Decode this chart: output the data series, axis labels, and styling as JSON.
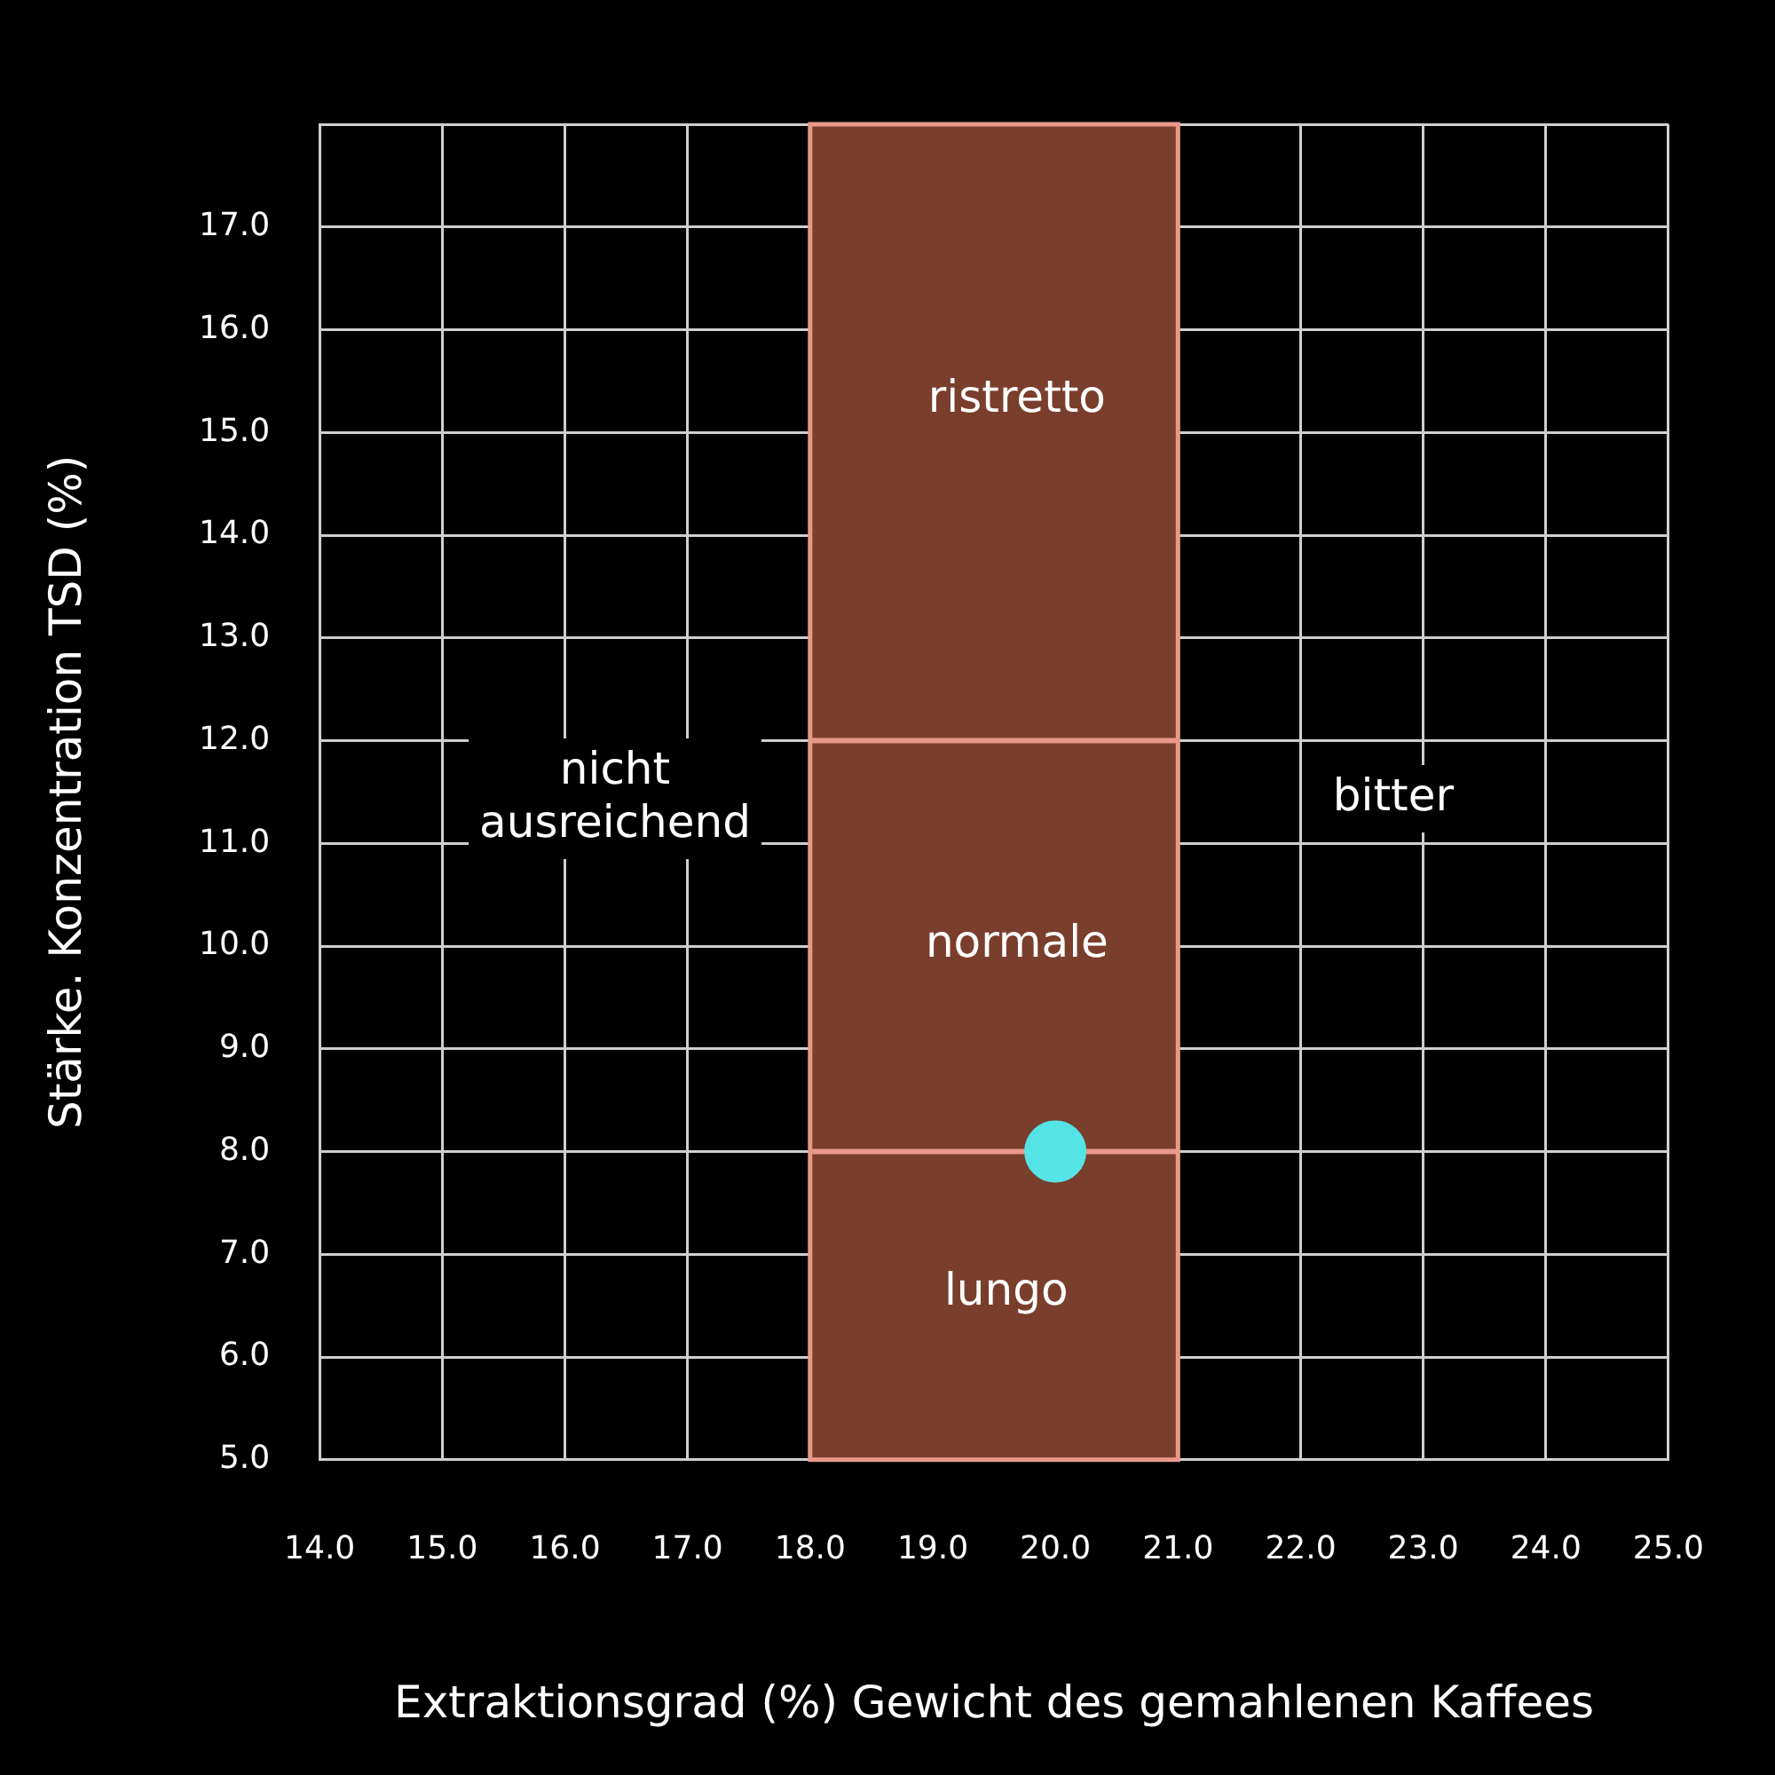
{
  "chart_data": {
    "type": "scatter",
    "xlabel": "Extraktionsgrad (%) Gewicht des gemahlenen Kaffees",
    "ylabel": "Stärke. Konzentration TSD (%)",
    "x": [
      20.0
    ],
    "values": [
      8.0
    ],
    "color": "#55e4e6",
    "marker": "circle",
    "xlim": [
      14,
      25
    ],
    "xticks": [
      {
        "value": 14,
        "label": "14.0"
      },
      {
        "value": 15,
        "label": "15.0"
      },
      {
        "value": 16,
        "label": "16.0"
      },
      {
        "value": 17,
        "label": "17.0"
      },
      {
        "value": 18,
        "label": "18.0"
      },
      {
        "value": 19,
        "label": "19.0"
      },
      {
        "value": 20,
        "label": "20.0"
      },
      {
        "value": 21,
        "label": "21.0"
      },
      {
        "value": 22,
        "label": "22.0"
      },
      {
        "value": 23,
        "label": "23.0"
      },
      {
        "value": 24,
        "label": "24.0"
      },
      {
        "value": 25,
        "label": "25.0"
      }
    ],
    "ylim": [
      5,
      18
    ],
    "yticks": [
      {
        "value": 5,
        "label": "5.0"
      },
      {
        "value": 6,
        "label": "6.0"
      },
      {
        "value": 7,
        "label": "7.0"
      },
      {
        "value": 8,
        "label": "8.0"
      },
      {
        "value": 9,
        "label": "9.0"
      },
      {
        "value": 10,
        "label": "10.0"
      },
      {
        "value": 11,
        "label": "11.0"
      },
      {
        "value": 12,
        "label": "12.0"
      },
      {
        "value": 13,
        "label": "13.0"
      },
      {
        "value": 14,
        "label": "14.0"
      },
      {
        "value": 15,
        "label": "15.0"
      },
      {
        "value": 16,
        "label": "16.0"
      },
      {
        "value": 17,
        "label": "17.0"
      },
      {
        "value": 18,
        "label": null
      }
    ],
    "grid": true,
    "bands": [
      {
        "axis": "x",
        "from": 18,
        "to": 21,
        "color": "#7a3e2c"
      }
    ],
    "ref_lines": [
      {
        "axis": "y",
        "value": 12,
        "color": "#e8998a"
      },
      {
        "axis": "y",
        "value": 8,
        "color": "#e8998a"
      }
    ],
    "annotations": [
      "ristretto",
      "normale",
      "lungo",
      "nicht ausreichend",
      "bitter"
    ]
  }
}
